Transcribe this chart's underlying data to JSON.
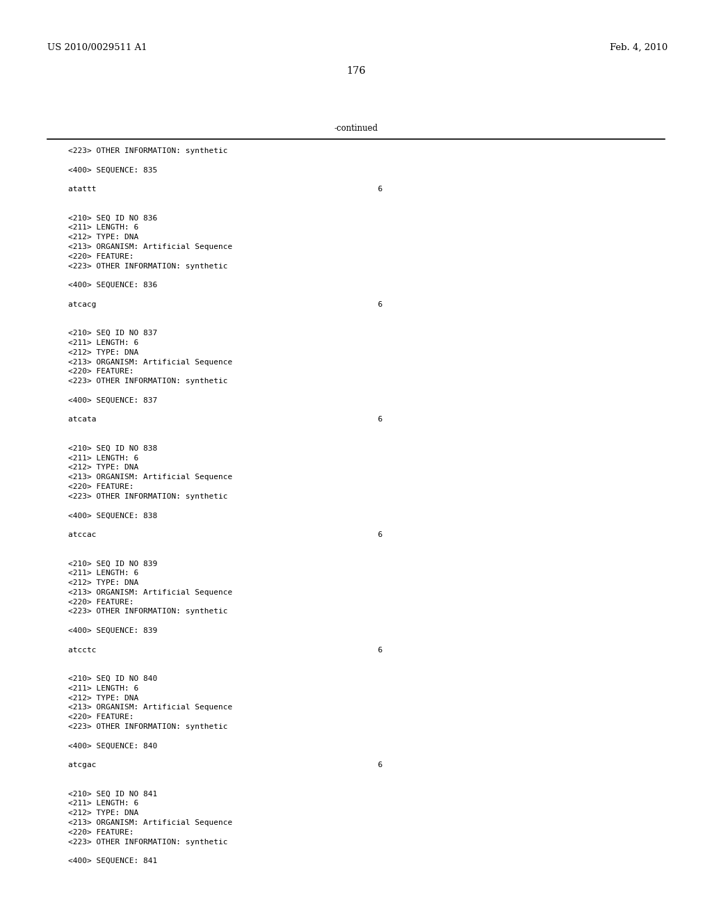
{
  "patent_number": "US 2010/0029511 A1",
  "date": "Feb. 4, 2010",
  "page_number": "176",
  "continued_label": "-continued",
  "background_color": "#ffffff",
  "text_color": "#000000",
  "font_size_header": 9.5,
  "font_size_page": 10.5,
  "font_size_continued": 8.5,
  "font_size_body": 8.0,
  "monospace_font": "DejaVu Sans Mono",
  "serif_font": "DejaVu Serif",
  "content_lines": [
    "<223> OTHER INFORMATION: synthetic",
    "",
    "<400> SEQUENCE: 835",
    "",
    "atattt                                                            6",
    "",
    "",
    "<210> SEQ ID NO 836",
    "<211> LENGTH: 6",
    "<212> TYPE: DNA",
    "<213> ORGANISM: Artificial Sequence",
    "<220> FEATURE:",
    "<223> OTHER INFORMATION: synthetic",
    "",
    "<400> SEQUENCE: 836",
    "",
    "atcacg                                                            6",
    "",
    "",
    "<210> SEQ ID NO 837",
    "<211> LENGTH: 6",
    "<212> TYPE: DNA",
    "<213> ORGANISM: Artificial Sequence",
    "<220> FEATURE:",
    "<223> OTHER INFORMATION: synthetic",
    "",
    "<400> SEQUENCE: 837",
    "",
    "atcata                                                            6",
    "",
    "",
    "<210> SEQ ID NO 838",
    "<211> LENGTH: 6",
    "<212> TYPE: DNA",
    "<213> ORGANISM: Artificial Sequence",
    "<220> FEATURE:",
    "<223> OTHER INFORMATION: synthetic",
    "",
    "<400> SEQUENCE: 838",
    "",
    "atccac                                                            6",
    "",
    "",
    "<210> SEQ ID NO 839",
    "<211> LENGTH: 6",
    "<212> TYPE: DNA",
    "<213> ORGANISM: Artificial Sequence",
    "<220> FEATURE:",
    "<223> OTHER INFORMATION: synthetic",
    "",
    "<400> SEQUENCE: 839",
    "",
    "atcctc                                                            6",
    "",
    "",
    "<210> SEQ ID NO 840",
    "<211> LENGTH: 6",
    "<212> TYPE: DNA",
    "<213> ORGANISM: Artificial Sequence",
    "<220> FEATURE:",
    "<223> OTHER INFORMATION: synthetic",
    "",
    "<400> SEQUENCE: 840",
    "",
    "atcgac                                                            6",
    "",
    "",
    "<210> SEQ ID NO 841",
    "<211> LENGTH: 6",
    "<212> TYPE: DNA",
    "<213> ORGANISM: Artificial Sequence",
    "<220> FEATURE:",
    "<223> OTHER INFORMATION: synthetic",
    "",
    "<400> SEQUENCE: 841"
  ]
}
